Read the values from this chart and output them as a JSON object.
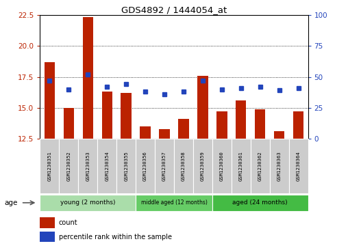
{
  "title": "GDS4892 / 1444054_at",
  "samples": [
    "GSM1230351",
    "GSM1230352",
    "GSM1230353",
    "GSM1230354",
    "GSM1230355",
    "GSM1230356",
    "GSM1230357",
    "GSM1230358",
    "GSM1230359",
    "GSM1230360",
    "GSM1230361",
    "GSM1230362",
    "GSM1230363",
    "GSM1230364"
  ],
  "bar_values": [
    18.7,
    15.0,
    22.3,
    16.3,
    16.2,
    13.5,
    13.3,
    14.1,
    17.6,
    14.7,
    15.6,
    14.9,
    13.1,
    14.7
  ],
  "bar_bottom": 12.5,
  "blue_values": [
    47,
    40,
    52,
    42,
    44,
    38,
    36,
    38,
    47,
    40,
    41,
    42,
    39,
    41
  ],
  "ylim_left": [
    12.5,
    22.5
  ],
  "ylim_right": [
    0,
    100
  ],
  "yticks_left": [
    12.5,
    15.0,
    17.5,
    20.0,
    22.5
  ],
  "yticks_right": [
    0,
    25,
    50,
    75,
    100
  ],
  "bar_color": "#bb2200",
  "dot_color": "#2244bb",
  "bg_xticklabels": "#cccccc",
  "group_young": {
    "label": "young (2 months)",
    "indices": [
      0,
      1,
      2,
      3,
      4
    ],
    "color": "#aaddaa"
  },
  "group_middle": {
    "label": "middle aged (12 months)",
    "indices": [
      5,
      6,
      7,
      8
    ],
    "color": "#66cc66"
  },
  "group_aged": {
    "label": "aged (24 months)",
    "indices": [
      9,
      10,
      11,
      12,
      13
    ],
    "color": "#44bb44"
  },
  "legend_count": "count",
  "legend_pct": "percentile rank within the sample",
  "age_label": "age"
}
